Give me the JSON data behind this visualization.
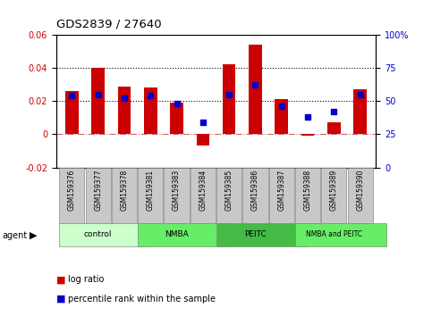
{
  "title": "GDS2839 / 27640",
  "samples": [
    "GSM159376",
    "GSM159377",
    "GSM159378",
    "GSM159381",
    "GSM159383",
    "GSM159384",
    "GSM159385",
    "GSM159386",
    "GSM159387",
    "GSM159388",
    "GSM159389",
    "GSM159390"
  ],
  "log_ratio": [
    0.026,
    0.04,
    0.029,
    0.028,
    0.019,
    -0.007,
    0.042,
    0.054,
    0.021,
    -0.001,
    0.007,
    0.027
  ],
  "percentile_rank": [
    54,
    55,
    52,
    54,
    48,
    34,
    55,
    62,
    46,
    38,
    42,
    55
  ],
  "groups": [
    {
      "label": "control",
      "start": 0,
      "end": 3,
      "color": "#ccffcc"
    },
    {
      "label": "NMBA",
      "start": 3,
      "end": 6,
      "color": "#66ee66"
    },
    {
      "label": "PEITC",
      "start": 6,
      "end": 9,
      "color": "#44bb44"
    },
    {
      "label": "NMBA and PEITC",
      "start": 9,
      "end": 12,
      "color": "#66ee66"
    }
  ],
  "bar_color": "#cc0000",
  "dot_color": "#0000cc",
  "ylim_left": [
    -0.02,
    0.06
  ],
  "ylim_right": [
    0,
    100
  ],
  "yticks_left": [
    -0.02,
    0.0,
    0.02,
    0.04,
    0.06
  ],
  "ytick_labels_left": [
    "-0.02",
    "0",
    "0.02",
    "0.04",
    "0.06"
  ],
  "yticks_right": [
    0,
    25,
    50,
    75,
    100
  ],
  "ytick_labels_right": [
    "0",
    "25",
    "50",
    "75",
    "100%"
  ],
  "hlines": [
    0.0,
    0.02,
    0.04
  ],
  "hline_styles": [
    "dashdot",
    "dotted",
    "dotted"
  ],
  "hline_colors": [
    "#cc6666",
    "#000000",
    "#000000"
  ],
  "background_color": "#ffffff",
  "bar_width": 0.5,
  "sample_box_color": "#c8c8c8",
  "sample_box_edge": "#888888"
}
